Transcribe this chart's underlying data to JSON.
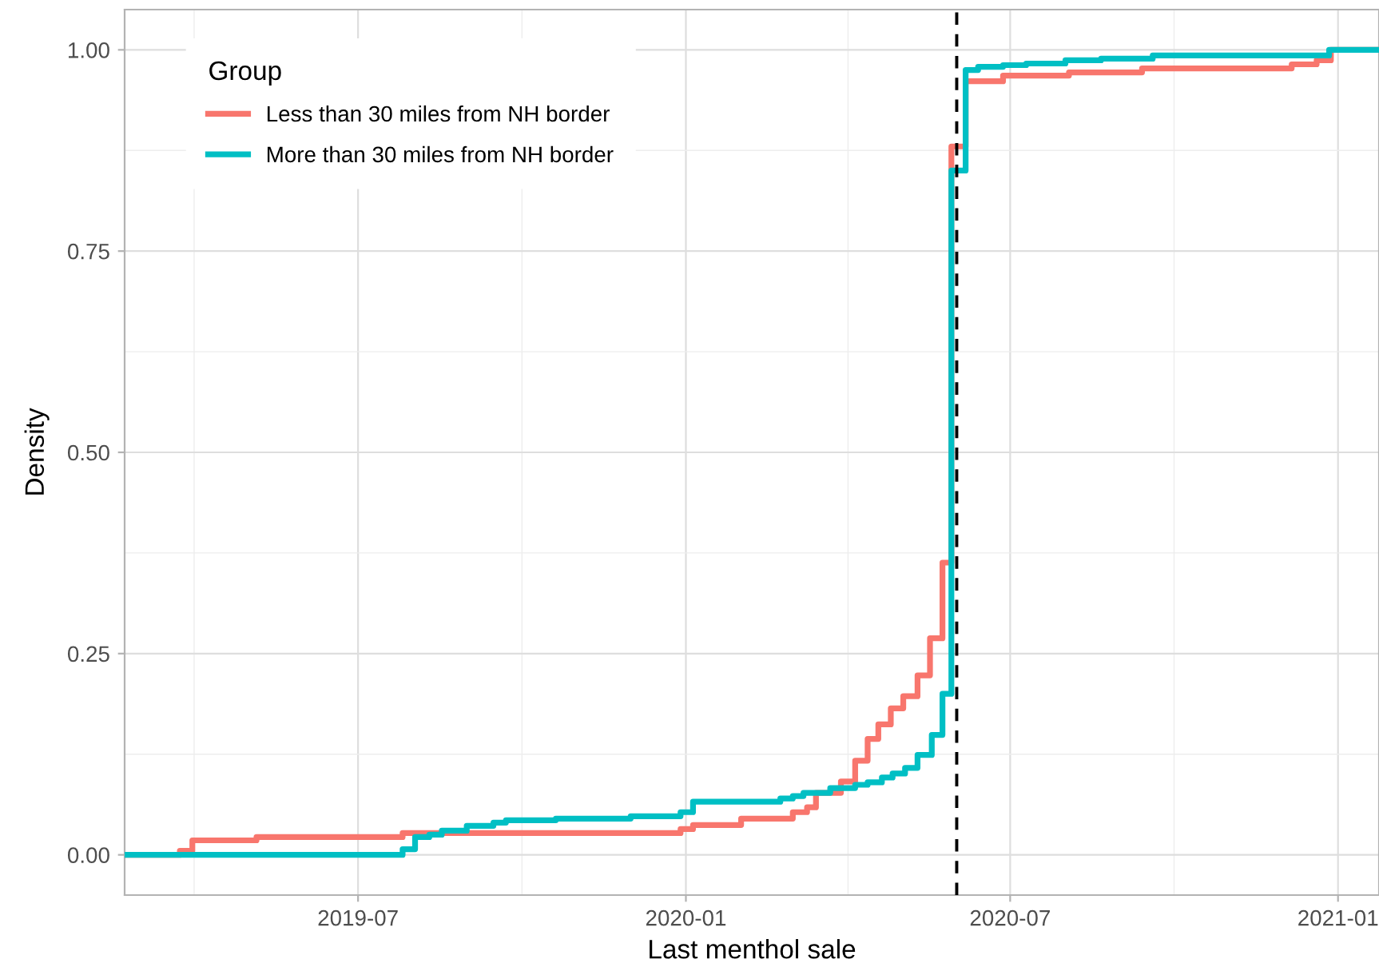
{
  "chart_data": {
    "type": "step",
    "xlabel": "Last menthol sale",
    "ylabel": "Density",
    "legend_title": "Group",
    "legend": "top left",
    "grid": true,
    "line_style": "solid",
    "marker": "none",
    "xlim": [
      "2019-02-20",
      "2021-01-24"
    ],
    "ylim": [
      -0.05,
      1.05
    ],
    "xticks": [
      {
        "value": "2019-07-01",
        "label": "2019-07"
      },
      {
        "value": "2020-01-01",
        "label": "2020-01"
      },
      {
        "value": "2020-07-01",
        "label": "2020-07"
      },
      {
        "value": "2021-01-01",
        "label": "2021-01"
      }
    ],
    "yticks": [
      {
        "value": 0,
        "label": "0.00"
      },
      {
        "value": 0.25,
        "label": "0.25"
      },
      {
        "value": 0.5,
        "label": "0.50"
      },
      {
        "value": 0.75,
        "label": "0.75"
      },
      {
        "value": 1,
        "label": "1.00"
      }
    ],
    "ref_lines": [
      {
        "axis": "x",
        "value": "2020-06-01",
        "color": "#000000",
        "line_style": "dashed"
      }
    ],
    "series": [
      {
        "name": "Less than 30 miles from NH border",
        "color": "#f8766d",
        "x": [
          "2019-02-20",
          "2019-03-23",
          "2019-03-30",
          "2019-05-05",
          "2019-07-26",
          "2019-12-29",
          "2020-01-05",
          "2020-02-01",
          "2020-03-01",
          "2020-03-09",
          "2020-03-14",
          "2020-03-28",
          "2020-04-05",
          "2020-04-12",
          "2020-04-18",
          "2020-04-25",
          "2020-05-02",
          "2020-05-10",
          "2020-05-17",
          "2020-05-24",
          "2020-05-29",
          "2020-06-06",
          "2020-06-27",
          "2020-08-03",
          "2020-09-13",
          "2020-12-06",
          "2020-12-20",
          "2020-12-28",
          "2021-01-24"
        ],
        "values": [
          0,
          0.005,
          0.018,
          0.022,
          0.027,
          0.032,
          0.037,
          0.045,
          0.053,
          0.059,
          0.077,
          0.091,
          0.117,
          0.144,
          0.162,
          0.182,
          0.197,
          0.223,
          0.269,
          0.363,
          0.88,
          0.961,
          0.968,
          0.972,
          0.977,
          0.982,
          0.987,
          1.0,
          1.0
        ]
      },
      {
        "name": "More than 30 miles from NH border",
        "color": "#00bfc4",
        "x": [
          "2019-02-20",
          "2019-07-26",
          "2019-08-02",
          "2019-08-10",
          "2019-08-17",
          "2019-08-31",
          "2019-09-15",
          "2019-09-22",
          "2019-10-20",
          "2019-12-01",
          "2019-12-29",
          "2020-01-05",
          "2020-02-23",
          "2020-03-01",
          "2020-03-07",
          "2020-03-22",
          "2020-04-05",
          "2020-04-12",
          "2020-04-20",
          "2020-04-26",
          "2020-05-03",
          "2020-05-10",
          "2020-05-18",
          "2020-05-24",
          "2020-05-29",
          "2020-06-06",
          "2020-06-13",
          "2020-06-27",
          "2020-07-10",
          "2020-08-01",
          "2020-08-21",
          "2020-09-19",
          "2020-12-27",
          "2021-01-24"
        ],
        "values": [
          0,
          0.007,
          0.022,
          0.025,
          0.03,
          0.036,
          0.04,
          0.043,
          0.045,
          0.048,
          0.053,
          0.066,
          0.07,
          0.073,
          0.077,
          0.083,
          0.087,
          0.09,
          0.096,
          0.101,
          0.108,
          0.124,
          0.149,
          0.2,
          0.85,
          0.975,
          0.979,
          0.981,
          0.983,
          0.987,
          0.989,
          0.993,
          1.0,
          1.0
        ]
      }
    ]
  }
}
